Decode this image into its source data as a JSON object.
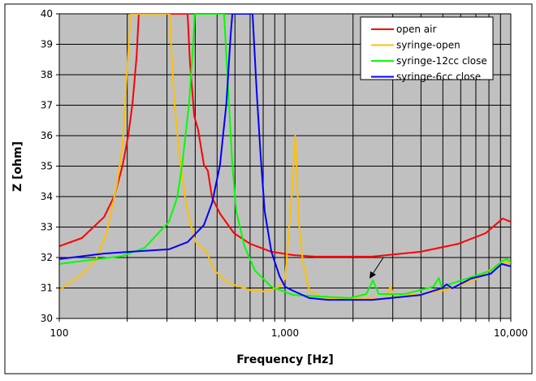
{
  "chart_data": {
    "type": "line",
    "xlabel": "Frequency [Hz]",
    "ylabel": "Z [ohm]",
    "x_scale": "log",
    "xlim": [
      100,
      10000
    ],
    "ylim": [
      30,
      40
    ],
    "x_ticks": [
      {
        "value": 100,
        "label": "100"
      },
      {
        "value": 1000,
        "label": "1,000"
      },
      {
        "value": 10000,
        "label": "10,000"
      }
    ],
    "y_ticks": [
      30,
      31,
      32,
      33,
      34,
      35,
      36,
      37,
      38,
      39,
      40
    ],
    "grid": true,
    "legend_position": "top-right",
    "plot_background": "#c0c0c0",
    "annotation": "arrow pointing to syringe-12cc close peak near 2,450 Hz",
    "series": [
      {
        "name": "open air",
        "color": "#ff0000",
        "points": [
          [
            100,
            32.37
          ],
          [
            126,
            32.64
          ],
          [
            158,
            33.33
          ],
          [
            176,
            34.05
          ],
          [
            191,
            35.04
          ],
          [
            202,
            36.0
          ],
          [
            211,
            37.07
          ],
          [
            220,
            38.6
          ],
          [
            225,
            40
          ],
          [
            370,
            40
          ],
          [
            379,
            38.4
          ],
          [
            396,
            36.64
          ],
          [
            412,
            36.2
          ],
          [
            437,
            35.04
          ],
          [
            455,
            34.85
          ],
          [
            475,
            33.97
          ],
          [
            515,
            33.44
          ],
          [
            594,
            32.8
          ],
          [
            700,
            32.45
          ],
          [
            870,
            32.19
          ],
          [
            1085,
            32.08
          ],
          [
            1360,
            32.03
          ],
          [
            2430,
            32.03
          ],
          [
            3980,
            32.19
          ],
          [
            5860,
            32.45
          ],
          [
            7740,
            32.8
          ],
          [
            9200,
            33.28
          ],
          [
            10000,
            33.17
          ]
        ]
      },
      {
        "name": "syringe-open",
        "color": "#ffc000",
        "points": [
          [
            100,
            30.93
          ],
          [
            126,
            31.44
          ],
          [
            145,
            31.92
          ],
          [
            162,
            32.8
          ],
          [
            180,
            34.4
          ],
          [
            191,
            35.73
          ],
          [
            199,
            37.97
          ],
          [
            207,
            40
          ],
          [
            308,
            40
          ],
          [
            322,
            37.25
          ],
          [
            340,
            35.39
          ],
          [
            361,
            33.97
          ],
          [
            379,
            33.17
          ],
          [
            402,
            32.51
          ],
          [
            448,
            32.19
          ],
          [
            487,
            31.57
          ],
          [
            560,
            31.17
          ],
          [
            700,
            30.93
          ],
          [
            825,
            30.88
          ],
          [
            945,
            31.04
          ],
          [
            1000,
            31.31
          ],
          [
            1070,
            34.05
          ],
          [
            1110,
            36.0
          ],
          [
            1150,
            33.17
          ],
          [
            1200,
            31.84
          ],
          [
            1280,
            30.93
          ],
          [
            1470,
            30.67
          ],
          [
            2770,
            30.67
          ],
          [
            2930,
            31.04
          ],
          [
            3050,
            30.75
          ],
          [
            3980,
            30.8
          ],
          [
            5130,
            30.93
          ],
          [
            6880,
            31.25
          ],
          [
            9100,
            31.84
          ],
          [
            10000,
            31.84
          ]
        ]
      },
      {
        "name": "syringe-12cc close",
        "color": "#00ff00",
        "points": [
          [
            100,
            31.79
          ],
          [
            191,
            32.05
          ],
          [
            239,
            32.32
          ],
          [
            306,
            33.17
          ],
          [
            333,
            33.97
          ],
          [
            350,
            35.04
          ],
          [
            376,
            37.07
          ],
          [
            392,
            39.04
          ],
          [
            398,
            40
          ],
          [
            537,
            40
          ],
          [
            560,
            37.52
          ],
          [
            584,
            35.04
          ],
          [
            608,
            33.52
          ],
          [
            661,
            32.37
          ],
          [
            736,
            31.57
          ],
          [
            870,
            31.04
          ],
          [
            1085,
            30.77
          ],
          [
            1940,
            30.67
          ],
          [
            2290,
            30.8
          ],
          [
            2450,
            31.25
          ],
          [
            2600,
            30.8
          ],
          [
            3380,
            30.8
          ],
          [
            4540,
            31.04
          ],
          [
            4800,
            31.33
          ],
          [
            4930,
            31.04
          ],
          [
            6540,
            31.33
          ],
          [
            8150,
            31.57
          ],
          [
            9100,
            31.87
          ],
          [
            9580,
            31.95
          ],
          [
            10000,
            31.84
          ]
        ]
      },
      {
        "name": "syringe-6cc close",
        "color": "#0000ff",
        "points": [
          [
            100,
            31.95
          ],
          [
            158,
            32.13
          ],
          [
            207,
            32.19
          ],
          [
            306,
            32.27
          ],
          [
            370,
            32.51
          ],
          [
            437,
            33.07
          ],
          [
            475,
            33.79
          ],
          [
            515,
            35.04
          ],
          [
            550,
            37.07
          ],
          [
            574,
            39.31
          ],
          [
            584,
            40
          ],
          [
            718,
            40
          ],
          [
            748,
            37.52
          ],
          [
            780,
            35.31
          ],
          [
            812,
            33.52
          ],
          [
            870,
            32.19
          ],
          [
            945,
            31.39
          ],
          [
            1000,
            31.04
          ],
          [
            1085,
            30.91
          ],
          [
            1280,
            30.67
          ],
          [
            1550,
            30.61
          ],
          [
            2430,
            30.61
          ],
          [
            3980,
            30.77
          ],
          [
            4930,
            30.99
          ],
          [
            5200,
            31.12
          ],
          [
            5500,
            30.99
          ],
          [
            6670,
            31.31
          ],
          [
            8150,
            31.47
          ],
          [
            9100,
            31.79
          ],
          [
            10000,
            31.71
          ]
        ]
      }
    ]
  }
}
